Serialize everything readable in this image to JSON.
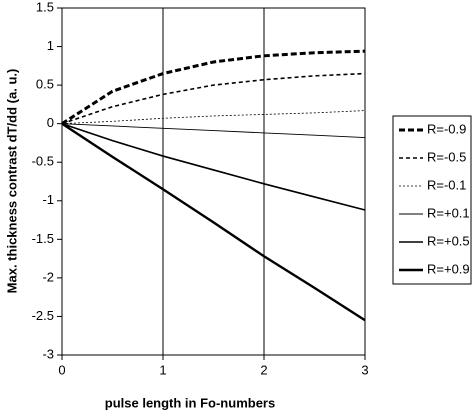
{
  "chart_data": {
    "type": "line",
    "x_label": "pulse length in Fo-numbers",
    "y_label": "Max. thickness contrast dT/dd (a. u.)",
    "x": [
      0,
      0.5,
      1,
      1.5,
      2,
      2.5,
      3
    ],
    "series": [
      {
        "name": "R=-0.9",
        "color": "#000000",
        "dash": "6 3",
        "width": 3,
        "values": [
          0,
          0.42,
          0.65,
          0.8,
          0.88,
          0.92,
          0.94
        ]
      },
      {
        "name": "R=-0.5",
        "color": "#000000",
        "dash": "4 3",
        "width": 1.6,
        "values": [
          0,
          0.22,
          0.38,
          0.5,
          0.57,
          0.62,
          0.65
        ]
      },
      {
        "name": "R=-0.1",
        "color": "#000000",
        "dash": "2 2",
        "width": 0.8,
        "values": [
          0,
          0.03,
          0.07,
          0.1,
          0.12,
          0.14,
          0.17
        ]
      },
      {
        "name": "R=+0.1",
        "color": "#000000",
        "dash": "none",
        "width": 0.9,
        "values": [
          0,
          -0.03,
          -0.06,
          -0.09,
          -0.12,
          -0.15,
          -0.18
        ]
      },
      {
        "name": "R=+0.5",
        "color": "#000000",
        "dash": "none",
        "width": 1.6,
        "values": [
          0,
          -0.22,
          -0.42,
          -0.6,
          -0.78,
          -0.95,
          -1.12
        ]
      },
      {
        "name": "R=+0.9",
        "color": "#000000",
        "dash": "none",
        "width": 2.4,
        "values": [
          0,
          -0.43,
          -0.85,
          -1.28,
          -1.72,
          -2.13,
          -2.55
        ]
      }
    ],
    "xlim": [
      0,
      3
    ],
    "xticks": [
      0,
      1,
      2,
      3
    ],
    "ylim": [
      -3,
      1.5
    ],
    "yticks": [
      1.5,
      1,
      0.5,
      0,
      -0.5,
      -1,
      -1.5,
      -2,
      -2.5,
      -3
    ],
    "grid": "x",
    "legend": "right"
  }
}
